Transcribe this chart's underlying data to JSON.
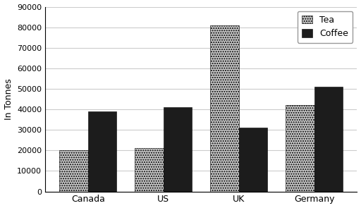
{
  "categories": [
    "Canada",
    "US",
    "UK",
    "Germany"
  ],
  "tea_values": [
    20000,
    21000,
    81000,
    42000
  ],
  "coffee_values": [
    39000,
    41000,
    31000,
    51000
  ],
  "tea_color": "#c8c8c8",
  "tea_hatch": ".....",
  "coffee_color": "#1c1c1c",
  "coffee_hatch": "",
  "ylabel": "In Tonnes",
  "ylim": [
    0,
    90000
  ],
  "yticks": [
    0,
    10000,
    20000,
    30000,
    40000,
    50000,
    60000,
    70000,
    80000,
    90000
  ],
  "legend_labels": [
    "Tea",
    "Coffee"
  ],
  "bar_width": 0.38,
  "background_color": "#ffffff",
  "grid_color": "#cccccc",
  "font_size": 9
}
